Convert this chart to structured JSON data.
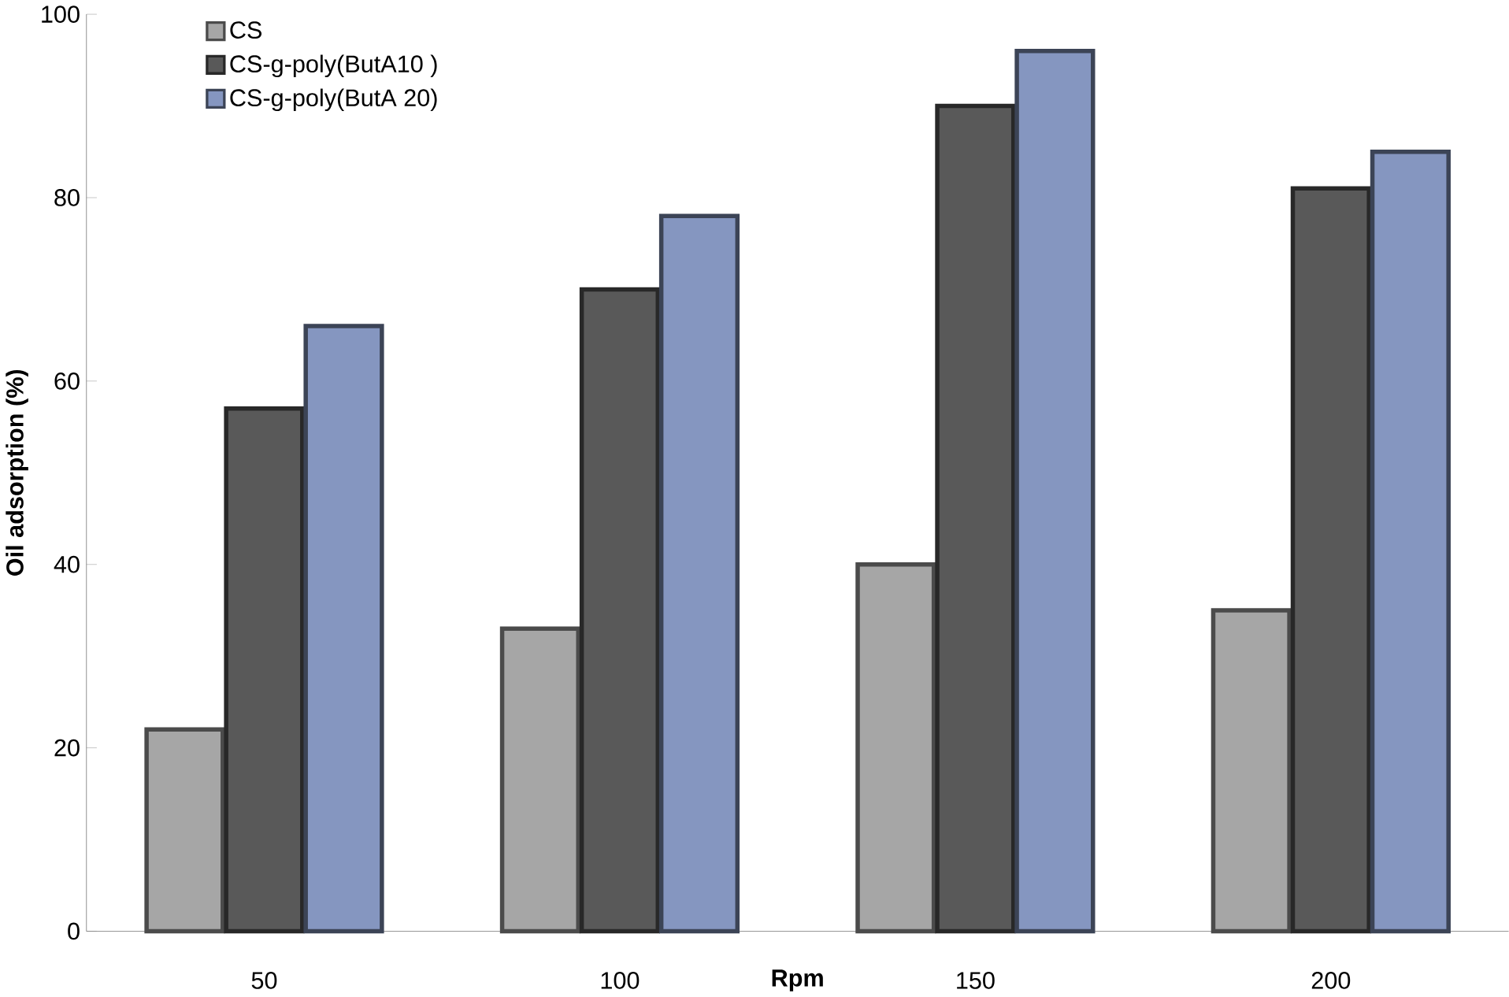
{
  "chart_data": {
    "type": "bar",
    "xlabel": "Rpm",
    "ylabel": "Oil adsorption (%)",
    "categories": [
      "50",
      "100",
      "150",
      "200"
    ],
    "series": [
      {
        "name": "CS",
        "color": "#a6a6a6",
        "values": [
          22,
          33,
          40,
          35
        ]
      },
      {
        "name": "CS-g-poly(ButA10 )",
        "color": "#595959",
        "values": [
          57,
          70,
          90,
          81
        ]
      },
      {
        "name": "CS-g-poly(ButA 20)",
        "color": "#8596c0",
        "values": [
          66,
          78,
          96,
          85
        ]
      }
    ],
    "ylim": [
      0,
      100
    ],
    "yticks": [
      0,
      20,
      40,
      60,
      80,
      100
    ],
    "legend": "top left",
    "grid": false
  }
}
